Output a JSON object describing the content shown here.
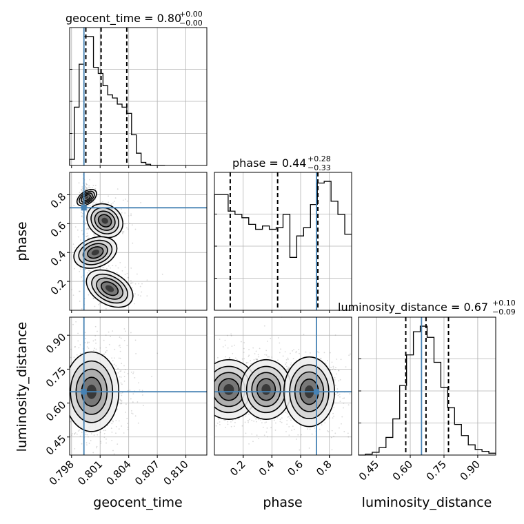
{
  "chart_data": {
    "type": "corner",
    "parameters": [
      {
        "name": "geocent_time",
        "label": "geocent_time",
        "title": "geocent_time = 0.80",
        "title_plus": "+0.00",
        "title_minus": "−0.00",
        "range": [
          0.7978,
          0.8122
        ],
        "ticks": [
          0.798,
          0.801,
          0.804,
          0.807,
          0.81
        ],
        "tick_labels": [
          "0.798",
          "0.801",
          "0.804",
          "0.807",
          "0.810"
        ],
        "truth": 0.7993,
        "quantiles": [
          0.7995,
          0.8011,
          0.8038
        ],
        "hist_edges_start": 0.7978,
        "hist_bin_width": 0.0005,
        "hist_counts": [
          2,
          19,
          33,
          42,
          42,
          32,
          30,
          26,
          23,
          22,
          20,
          19,
          17,
          10,
          4,
          1,
          0.4,
          0,
          0,
          0
        ]
      },
      {
        "name": "phase",
        "label": "phase",
        "title": "phase = 0.44",
        "title_plus": "+0.28",
        "title_minus": "−0.33",
        "range": [
          0.0,
          0.955
        ],
        "ticks": [
          0.2,
          0.4,
          0.6,
          0.8
        ],
        "tick_labels": [
          "0.2",
          "0.4",
          "0.6",
          "0.8"
        ],
        "truth": 0.71,
        "quantiles": [
          0.11,
          0.44,
          0.72
        ],
        "hist_edges_start": 0.0,
        "hist_bin_width": 0.04775,
        "hist_counts": [
          70,
          70,
          60,
          58,
          56,
          52,
          49,
          51,
          49,
          50,
          58,
          32,
          45,
          50,
          64,
          77,
          78,
          66,
          58,
          46
        ]
      },
      {
        "name": "luminosity_distance",
        "label": "luminosity_distance",
        "title": "luminosity_distance = 0.67",
        "title_plus": "+0.10",
        "title_minus": "−0.09",
        "range": [
          0.37,
          0.98
        ],
        "ticks": [
          0.45,
          0.6,
          0.75,
          0.9
        ],
        "tick_labels": [
          "0.45",
          "0.60",
          "0.75",
          "0.90"
        ],
        "truth": 0.65,
        "quantiles": [
          0.58,
          0.67,
          0.77
        ],
        "hist_edges_start": 0.37,
        "hist_bin_width": 0.0305,
        "hist_counts": [
          0,
          1,
          3,
          8,
          19,
          39,
          75,
          108,
          133,
          139,
          127,
          100,
          73,
          51,
          33,
          21,
          11,
          6,
          4,
          2
        ]
      }
    ],
    "pair_yticks": {
      "phase": [
        "0.2",
        "0.4",
        "0.6",
        "0.8"
      ],
      "luminosity_distance": [
        "0.45",
        "0.60",
        "0.75",
        "0.90"
      ]
    },
    "grid": true
  }
}
